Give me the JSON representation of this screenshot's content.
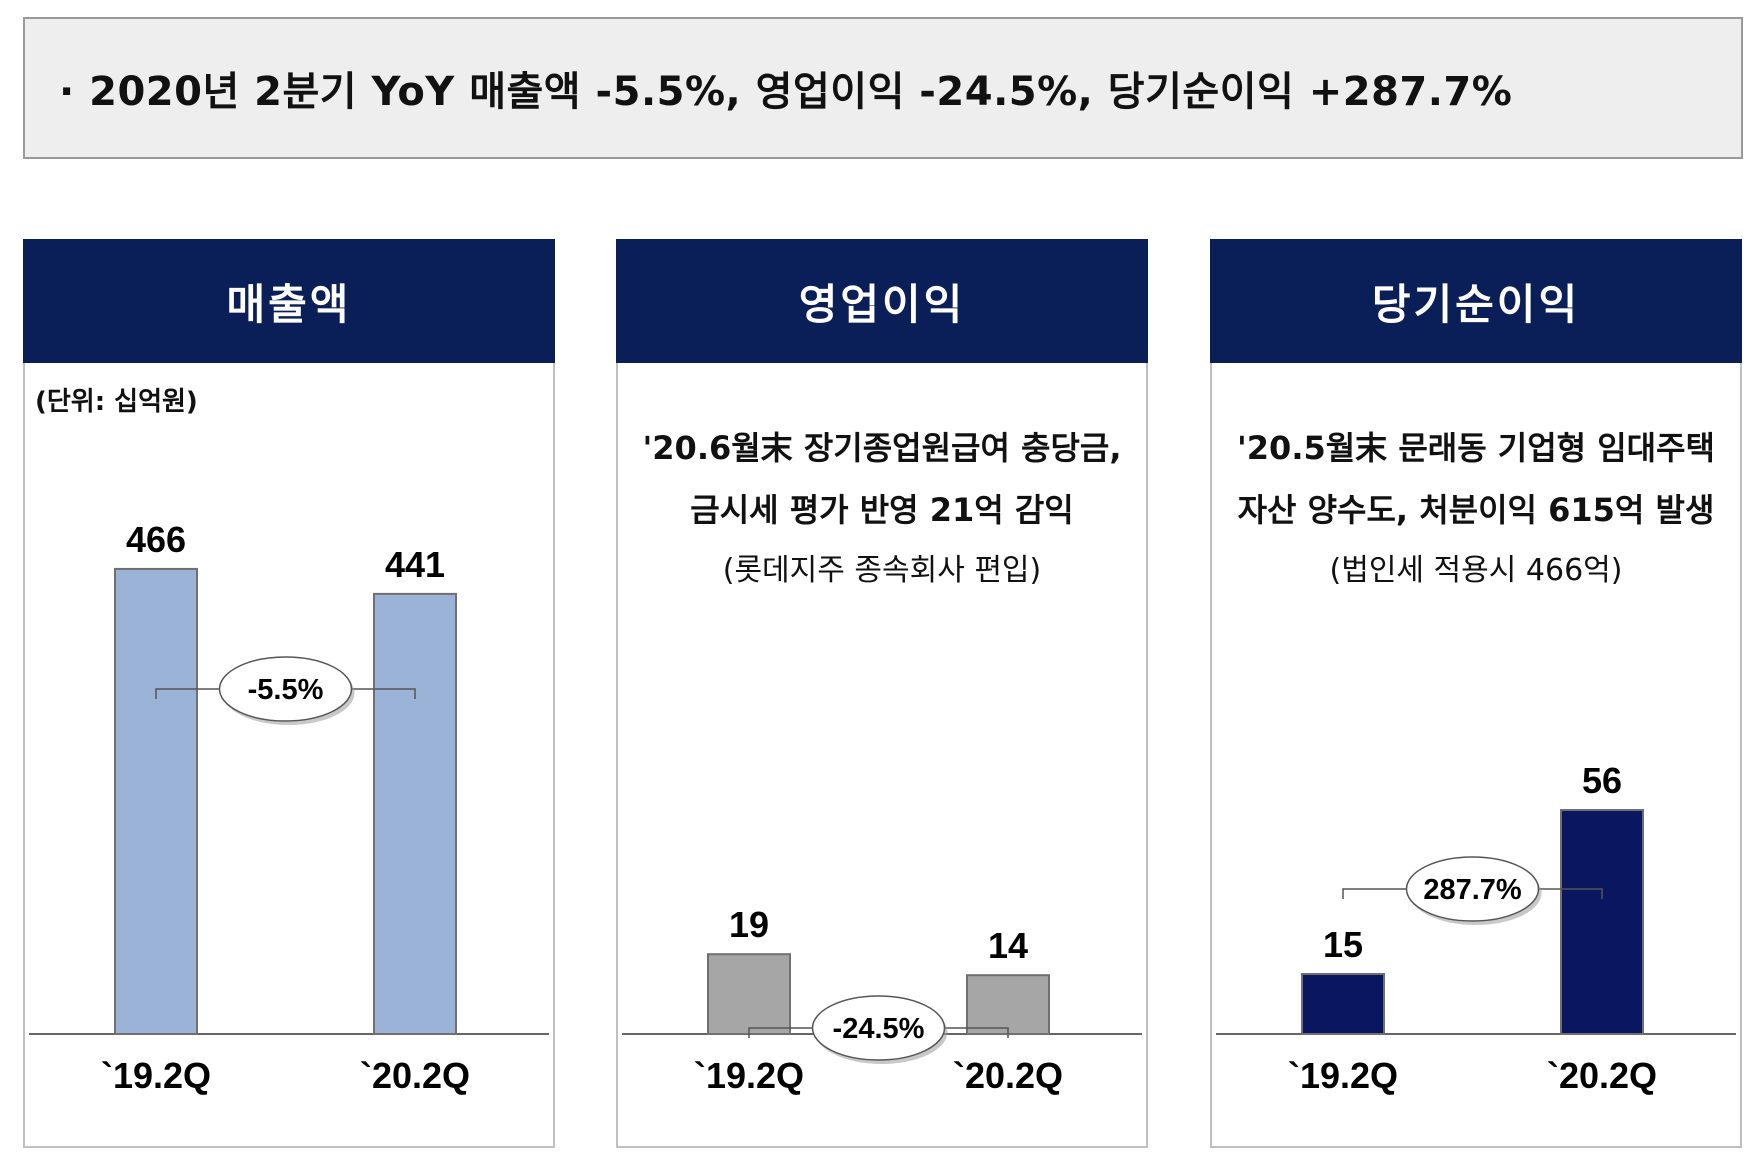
{
  "summary": {
    "text": "· 2020년 2분기 YoY 매출액 -5.5%, 영업이익 -24.5%, 당기순이익 +287.7%"
  },
  "panels": [
    {
      "title": "매출액",
      "unit": "(단위: 십억원)",
      "note_lines": [],
      "note_sub": ""
    },
    {
      "title": "영업이익",
      "unit": "",
      "note_lines": [
        "'20.6월末 장기종업원급여 충당금,",
        "금시세 평가 반영 21억 감익"
      ],
      "note_sub": "(롯데지주 종속회사 편입)"
    },
    {
      "title": "당기순이익",
      "unit": "",
      "note_lines": [
        "'20.5월末 문래동 기업형 임대주택",
        "자산 양수도, 처분이익 615억 발생"
      ],
      "note_sub": "(법인세 적용시 466억)"
    }
  ],
  "chart_data": [
    {
      "type": "bar",
      "title": "매출액",
      "categories": [
        "`19.2Q",
        "`20.2Q"
      ],
      "values": [
        466,
        441
      ],
      "bar_color": "#9bb3d6",
      "change_label": "-5.5%",
      "unit": "(단위: 십억원)"
    },
    {
      "type": "bar",
      "title": "영업이익",
      "categories": [
        "`19.2Q",
        "`20.2Q"
      ],
      "values": [
        19,
        14
      ],
      "bar_color": "#a6a6a6",
      "change_label": "-24.5%"
    },
    {
      "type": "bar",
      "title": "당기순이익",
      "categories": [
        "`19.2Q",
        "`20.2Q"
      ],
      "values": [
        15,
        56
      ],
      "bar_color": "#0a1760",
      "change_label": "287.7%"
    }
  ]
}
